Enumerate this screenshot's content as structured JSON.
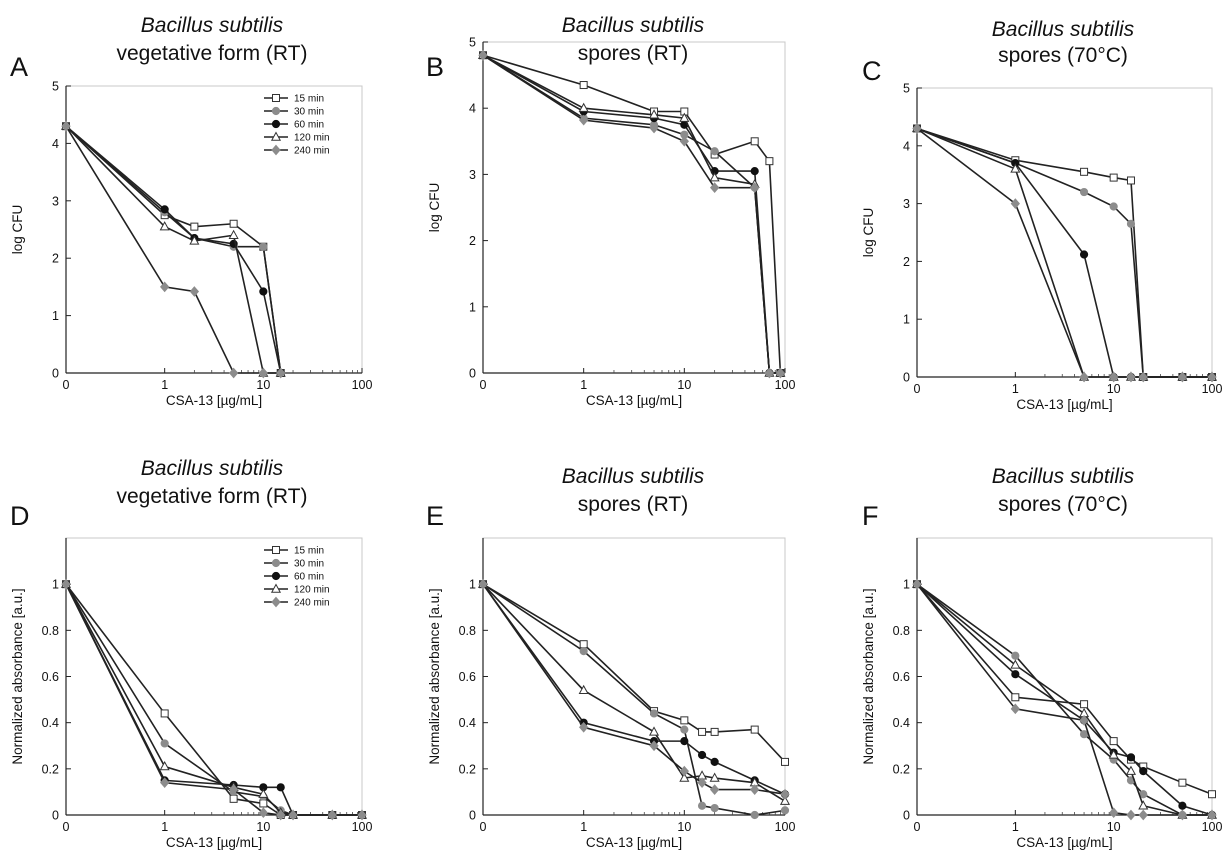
{
  "figure": {
    "x_tick_labels": [
      "0",
      "1",
      "10",
      "100"
    ],
    "legend_labels": [
      "15 min",
      "30 min",
      "60 min",
      "120 min",
      "240 min"
    ],
    "legend_location": "top-right"
  },
  "series_style": [
    {
      "marker": "square",
      "fill": "#ffffff",
      "stroke": "#333333"
    },
    {
      "marker": "circle",
      "fill": "#8c8c8c",
      "stroke": "#8c8c8c"
    },
    {
      "marker": "circle",
      "fill": "#111111",
      "stroke": "#111111"
    },
    {
      "marker": "triangle",
      "fill": "#ffffff",
      "stroke": "#333333"
    },
    {
      "marker": "diamond",
      "fill": "#8c8c8c",
      "stroke": "#8c8c8c"
    }
  ],
  "chart_data": [
    {
      "panel": "A",
      "type": "line",
      "title_line1": "Bacillus subtilis",
      "title_line2": "vegetative form (RT)",
      "xlabel": "CSA-13 [µg/mL]",
      "ylabel": "log CFU",
      "x_scale": "log (0 shown at origin)",
      "ylim": [
        0,
        5
      ],
      "y_ticks": [
        "0",
        "1",
        "2",
        "3",
        "4",
        "5"
      ],
      "legend": true,
      "grid": false,
      "series": [
        {
          "name": "15 min",
          "x": [
            0,
            1,
            2,
            5,
            10,
            15
          ],
          "y": [
            4.3,
            2.75,
            2.55,
            2.6,
            2.2,
            0
          ]
        },
        {
          "name": "30 min",
          "x": [
            0,
            1,
            2,
            5,
            10,
            15
          ],
          "y": [
            4.3,
            2.8,
            2.35,
            2.2,
            2.2,
            0
          ]
        },
        {
          "name": "60 min",
          "x": [
            0,
            1,
            2,
            5,
            10,
            15
          ],
          "y": [
            4.3,
            2.85,
            2.35,
            2.25,
            1.42,
            0
          ]
        },
        {
          "name": "120 min",
          "x": [
            0,
            1,
            2,
            5,
            10,
            15
          ],
          "y": [
            4.3,
            2.55,
            2.3,
            2.4,
            0,
            0
          ]
        },
        {
          "name": "240 min",
          "x": [
            0,
            1,
            2,
            5,
            10,
            15
          ],
          "y": [
            4.3,
            1.5,
            1.42,
            0,
            0,
            0
          ]
        }
      ]
    },
    {
      "panel": "B",
      "type": "line",
      "title_line1": "Bacillus subtilis",
      "title_line2": "spores (RT)",
      "xlabel": "CSA-13 [µg/mL]",
      "ylabel": "log CFU",
      "x_scale": "log (0 shown at origin)",
      "ylim": [
        0,
        5
      ],
      "y_ticks": [
        "0",
        "1",
        "2",
        "3",
        "4",
        "5"
      ],
      "legend": false,
      "grid": false,
      "series": [
        {
          "name": "15 min",
          "x": [
            0,
            1,
            5,
            10,
            20,
            50,
            70,
            90
          ],
          "y": [
            4.8,
            4.35,
            3.95,
            3.95,
            3.3,
            3.5,
            3.2,
            0
          ]
        },
        {
          "name": "30 min",
          "x": [
            0,
            1,
            5,
            10,
            20,
            50,
            70,
            90
          ],
          "y": [
            4.8,
            3.85,
            3.75,
            3.6,
            3.35,
            2.8,
            0,
            0
          ]
        },
        {
          "name": "60 min",
          "x": [
            0,
            1,
            5,
            10,
            20,
            50,
            70,
            90
          ],
          "y": [
            4.8,
            3.95,
            3.85,
            3.75,
            3.05,
            3.05,
            0,
            0
          ]
        },
        {
          "name": "120 min",
          "x": [
            0,
            1,
            5,
            10,
            20,
            50,
            70,
            90
          ],
          "y": [
            4.8,
            4.0,
            3.9,
            3.85,
            2.95,
            2.85,
            0,
            0
          ]
        },
        {
          "name": "240 min",
          "x": [
            0,
            1,
            5,
            10,
            20,
            50,
            70,
            90
          ],
          "y": [
            4.8,
            3.82,
            3.7,
            3.5,
            2.8,
            2.8,
            0,
            0
          ]
        }
      ]
    },
    {
      "panel": "C",
      "type": "line",
      "title_line1": "Bacillus subtilis",
      "title_line2": "spores (70°C)",
      "xlabel": "CSA-13 [µg/mL]",
      "ylabel": "log CFU",
      "x_scale": "log (0 shown at origin)",
      "ylim": [
        0,
        5
      ],
      "y_ticks": [
        "0",
        "1",
        "2",
        "3",
        "4",
        "5"
      ],
      "legend": false,
      "grid": false,
      "series": [
        {
          "name": "15 min",
          "x": [
            0,
            1,
            5,
            10,
            15,
            20,
            50,
            100
          ],
          "y": [
            4.3,
            3.75,
            3.55,
            3.45,
            3.4,
            0,
            0,
            0
          ]
        },
        {
          "name": "30 min",
          "x": [
            0,
            1,
            5,
            10,
            15,
            20,
            50,
            100
          ],
          "y": [
            4.3,
            3.7,
            3.2,
            2.95,
            2.65,
            0,
            0,
            0
          ]
        },
        {
          "name": "60 min",
          "x": [
            0,
            1,
            5,
            10,
            15,
            20,
            50,
            100
          ],
          "y": [
            4.3,
            3.7,
            2.12,
            0,
            0,
            0,
            0,
            0
          ]
        },
        {
          "name": "120 min",
          "x": [
            0,
            1,
            5,
            10,
            15,
            20,
            50,
            100
          ],
          "y": [
            4.3,
            3.6,
            0,
            0,
            0,
            0,
            0,
            0
          ]
        },
        {
          "name": "240 min",
          "x": [
            0,
            1,
            5,
            10,
            15,
            20,
            50,
            100
          ],
          "y": [
            4.3,
            3.0,
            0,
            0,
            0,
            0,
            0,
            0
          ]
        }
      ]
    },
    {
      "panel": "D",
      "type": "line",
      "title_line1": "Bacillus subtilis",
      "title_line2": "vegetative form (RT)",
      "xlabel": "CSA-13 [µg/mL]",
      "ylabel": "Normalized absorbance [a.u.]",
      "x_scale": "log (0 shown at origin)",
      "ylim": [
        0,
        1.2
      ],
      "y_ticks": [
        "0",
        "0.2",
        "0.4",
        "0.6",
        "0.8",
        "1"
      ],
      "legend": true,
      "grid": false,
      "series": [
        {
          "name": "15 min",
          "x": [
            0,
            1,
            5,
            10,
            15,
            20,
            50,
            100
          ],
          "y": [
            1.0,
            0.44,
            0.07,
            0.05,
            0,
            0,
            0,
            0
          ]
        },
        {
          "name": "30 min",
          "x": [
            0,
            1,
            5,
            10,
            15,
            20,
            50,
            100
          ],
          "y": [
            1.0,
            0.31,
            0.1,
            0.08,
            0.02,
            0,
            0,
            0
          ]
        },
        {
          "name": "60 min",
          "x": [
            0,
            1,
            5,
            10,
            15,
            20,
            50,
            100
          ],
          "y": [
            1.0,
            0.15,
            0.13,
            0.12,
            0.12,
            0,
            0,
            0
          ]
        },
        {
          "name": "120 min",
          "x": [
            0,
            1,
            5,
            10,
            15,
            20,
            50,
            100
          ],
          "y": [
            1.0,
            0.21,
            0.12,
            0.09,
            0.01,
            0,
            0,
            0
          ]
        },
        {
          "name": "240 min",
          "x": [
            0,
            1,
            5,
            10,
            15,
            20,
            50,
            100
          ],
          "y": [
            1.0,
            0.14,
            0.11,
            0.01,
            0,
            0,
            0,
            0
          ]
        }
      ]
    },
    {
      "panel": "E",
      "type": "line",
      "title_line1": "Bacillus subtilis",
      "title_line2": "spores (RT)",
      "xlabel": "CSA-13 [µg/mL]",
      "ylabel": "Normalized absorbance [a.u.]",
      "x_scale": "log (0 shown at origin)",
      "ylim": [
        0,
        1.2
      ],
      "y_ticks": [
        "0",
        "0.2",
        "0.4",
        "0.6",
        "0.8",
        "1"
      ],
      "legend": false,
      "grid": false,
      "series": [
        {
          "name": "15 min",
          "x": [
            0,
            1,
            5,
            10,
            15,
            20,
            50,
            100
          ],
          "y": [
            1.0,
            0.74,
            0.45,
            0.41,
            0.36,
            0.36,
            0.37,
            0.23
          ]
        },
        {
          "name": "30 min",
          "x": [
            0,
            1,
            5,
            10,
            15,
            20,
            50,
            100
          ],
          "y": [
            1.0,
            0.71,
            0.44,
            0.37,
            0.04,
            0.03,
            0,
            0.02
          ]
        },
        {
          "name": "60 min",
          "x": [
            0,
            1,
            5,
            10,
            15,
            20,
            50,
            100
          ],
          "y": [
            1.0,
            0.4,
            0.32,
            0.32,
            0.26,
            0.23,
            0.15,
            0.09
          ]
        },
        {
          "name": "120 min",
          "x": [
            0,
            1,
            5,
            10,
            15,
            20,
            50,
            100
          ],
          "y": [
            1.0,
            0.54,
            0.36,
            0.16,
            0.17,
            0.16,
            0.14,
            0.06
          ]
        },
        {
          "name": "240 min",
          "x": [
            0,
            1,
            5,
            10,
            15,
            20,
            50,
            100
          ],
          "y": [
            1.0,
            0.38,
            0.3,
            0.19,
            0.14,
            0.11,
            0.11,
            0.09
          ]
        }
      ]
    },
    {
      "panel": "F",
      "type": "line",
      "title_line1": "Bacillus subtilis",
      "title_line2": "spores (70°C)",
      "xlabel": "CSA-13 [µg/mL]",
      "ylabel": "Normalized absorbance [a.u.]",
      "x_scale": "log (0 shown at origin)",
      "ylim": [
        0,
        1.2
      ],
      "y_ticks": [
        "0",
        "0.2",
        "0.4",
        "0.6",
        "0.8",
        "1"
      ],
      "legend": false,
      "grid": false,
      "series": [
        {
          "name": "15 min",
          "x": [
            0,
            1,
            5,
            10,
            15,
            20,
            50,
            100
          ],
          "y": [
            1.0,
            0.51,
            0.48,
            0.32,
            0.24,
            0.21,
            0.14,
            0.09
          ]
        },
        {
          "name": "30 min",
          "x": [
            0,
            1,
            5,
            10,
            15,
            20,
            50,
            100
          ],
          "y": [
            1.0,
            0.69,
            0.35,
            0.24,
            0.15,
            0.09,
            0,
            0
          ]
        },
        {
          "name": "60 min",
          "x": [
            0,
            1,
            5,
            10,
            15,
            20,
            50,
            100
          ],
          "y": [
            1.0,
            0.61,
            0.41,
            0.27,
            0.25,
            0.19,
            0.04,
            0
          ]
        },
        {
          "name": "120 min",
          "x": [
            0,
            1,
            5,
            10,
            15,
            20,
            50,
            100
          ],
          "y": [
            1.0,
            0.65,
            0.44,
            0.26,
            0.19,
            0.04,
            0,
            0
          ]
        },
        {
          "name": "240 min",
          "x": [
            0,
            1,
            5,
            10,
            15,
            20,
            50,
            100
          ],
          "y": [
            1.0,
            0.46,
            0.41,
            0.01,
            0,
            0,
            0,
            0
          ]
        }
      ]
    }
  ]
}
